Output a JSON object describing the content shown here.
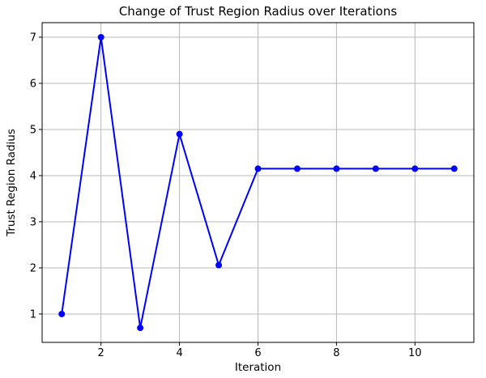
{
  "figure": {
    "background": "#ffffff"
  },
  "chart_data": {
    "type": "line",
    "title": "Change of Trust Region Radius over Iterations",
    "xlabel": "Iteration",
    "ylabel": "Trust Region Radius",
    "x": [
      1,
      2,
      3,
      4,
      5,
      6,
      7,
      8,
      9,
      10,
      11
    ],
    "y": [
      1.0,
      7.0,
      0.7,
      4.9,
      2.06,
      4.15,
      4.15,
      4.15,
      4.15,
      4.15,
      4.15
    ],
    "x_ticks": [
      2,
      4,
      6,
      8,
      10
    ],
    "y_ticks": [
      1,
      2,
      3,
      4,
      5,
      6,
      7
    ],
    "xlim": [
      0.5,
      11.5
    ],
    "ylim": [
      0.385,
      7.315
    ],
    "grid": true,
    "legend_position": "none",
    "line_color": "#0000ff",
    "marker": "circle",
    "marker_color": "#0000ff",
    "grid_color": "#b8b8b8",
    "axis_color": "#000000",
    "text_color": "#000000"
  }
}
